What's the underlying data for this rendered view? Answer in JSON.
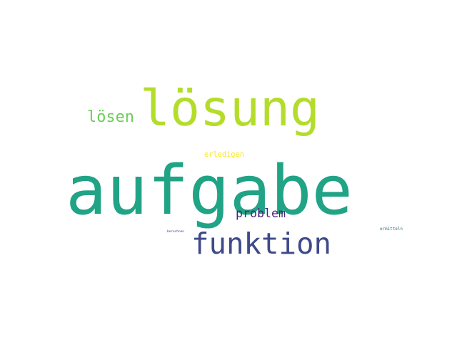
{
  "word_cloud": {
    "words": [
      {
        "text": "aufgabe",
        "color": "#21a386"
      },
      {
        "text": "lösung",
        "color": "#b4dd2b"
      },
      {
        "text": "funktion",
        "color": "#3e4a89"
      },
      {
        "text": "lösen",
        "color": "#6cce59"
      },
      {
        "text": "problem",
        "color": "#482677"
      },
      {
        "text": "erledigen",
        "color": "#fde725"
      },
      {
        "text": "ermitteln",
        "color": "#2a788e"
      },
      {
        "text": "berechnen",
        "color": "#433e85"
      }
    ]
  }
}
